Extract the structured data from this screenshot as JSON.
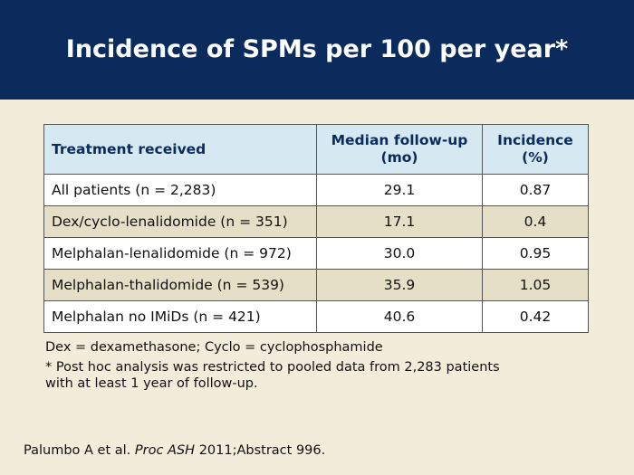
{
  "slide": {
    "title": "Incidence of SPMs per 100 per year*"
  },
  "table": {
    "headers": {
      "treatment": "Treatment received",
      "median_line1": "Median follow-up",
      "median_line2": "(mo)",
      "incidence_line1": "Incidence",
      "incidence_line2": "(%)"
    },
    "rows": [
      {
        "treatment": "All patients (n = 2,283)",
        "median": "29.1",
        "incidence": "0.87"
      },
      {
        "treatment": "Dex/cyclo-lenalidomide (n = 351)",
        "median": "17.1",
        "incidence": "0.4"
      },
      {
        "treatment": "Melphalan-lenalidomide (n = 972)",
        "median": "30.0",
        "incidence": "0.95"
      },
      {
        "treatment": "Melphalan-thalidomide (n = 539)",
        "median": "35.9",
        "incidence": "1.05"
      },
      {
        "treatment": "Melphalan no IMiDs (n = 421)",
        "median": "40.6",
        "incidence": "0.42"
      }
    ]
  },
  "footnotes": {
    "abbreviations": "Dex = dexamethasone; Cyclo = cyclophosphamide",
    "asterisk_line1": "* Post hoc analysis was restricted to pooled data from 2,283 patients",
    "asterisk_line2": "with at least 1 year of follow-up."
  },
  "citation": {
    "authors": "Palumbo A et al.",
    "journal": "Proc ASH",
    "details": "2011;Abstract 996."
  },
  "colors": {
    "title_bar": "#0a2b5b",
    "background": "#f2ecdb",
    "header_row": "#d6e9f3",
    "alt_row": "#e6dfc7"
  }
}
